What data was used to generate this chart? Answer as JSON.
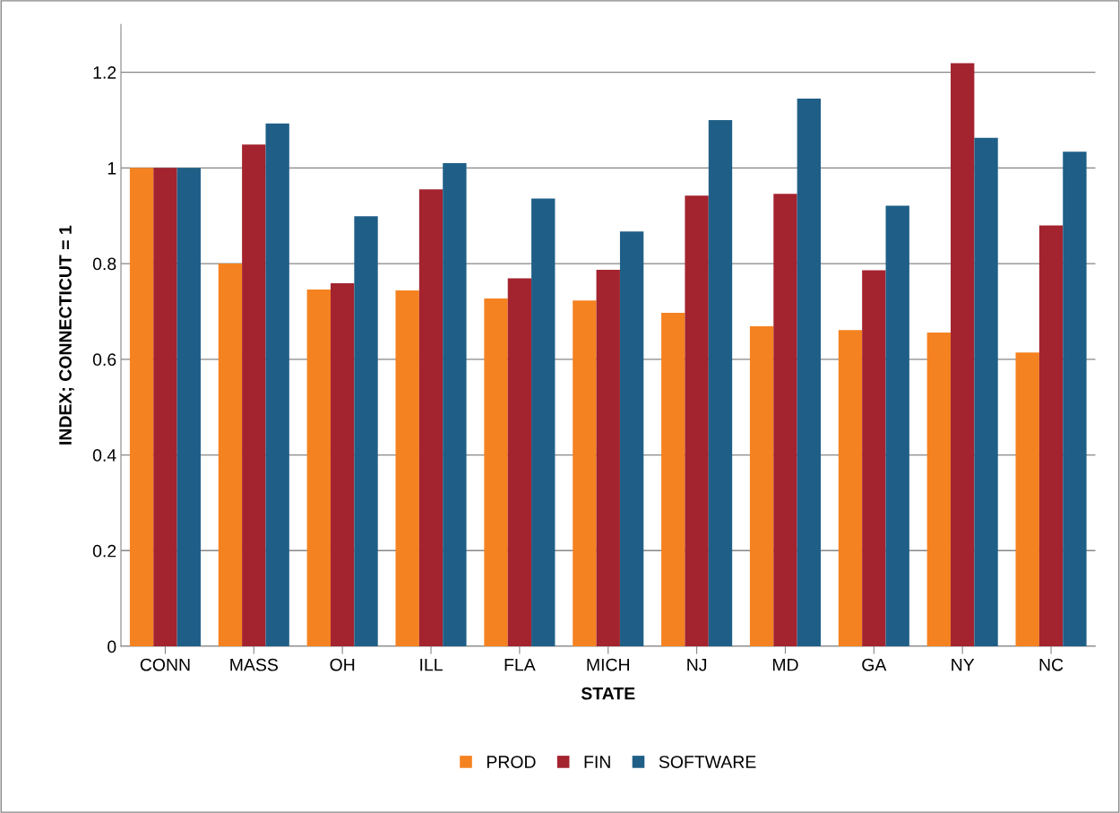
{
  "chart_data": {
    "type": "bar",
    "xlabel": "STATE",
    "ylabel": "INDEX; CONNECTICUT = 1",
    "categories": [
      "CONN",
      "MASS",
      "OH",
      "ILL",
      "FLA",
      "MICH",
      "NJ",
      "MD",
      "GA",
      "NY",
      "NC"
    ],
    "series": [
      {
        "name": "PROD",
        "color": "#f58220",
        "values": [
          1.0,
          0.8,
          0.746,
          0.744,
          0.727,
          0.723,
          0.697,
          0.669,
          0.661,
          0.656,
          0.614
        ]
      },
      {
        "name": "FIN",
        "color": "#a3232f",
        "values": [
          1.0,
          1.049,
          0.759,
          0.955,
          0.769,
          0.787,
          0.942,
          0.946,
          0.786,
          1.219,
          0.88
        ]
      },
      {
        "name": "SOFTWARE",
        "color": "#1f5f87",
        "values": [
          1.0,
          1.093,
          0.899,
          1.01,
          0.936,
          0.867,
          1.1,
          1.145,
          0.921,
          1.063,
          1.034
        ]
      }
    ],
    "ylim": [
      0,
      1.3
    ],
    "yticks": [
      0,
      0.2,
      0.4,
      0.6,
      0.8,
      1,
      1.2
    ],
    "grid": "y",
    "legend": "bottom"
  }
}
